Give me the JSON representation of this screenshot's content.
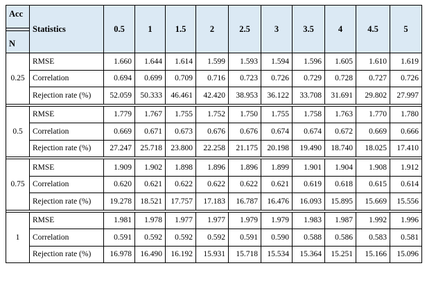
{
  "header": {
    "acc_label": "Acc",
    "n_label": "N",
    "statistics_label": "Statistics",
    "acc_values": [
      "0.5",
      "1",
      "1.5",
      "2",
      "2.5",
      "3",
      "3.5",
      "4",
      "4.5",
      "5"
    ]
  },
  "groups": [
    {
      "n": "0.25",
      "rows": [
        {
          "stat": "RMSE",
          "values": [
            "1.660",
            "1.644",
            "1.614",
            "1.599",
            "1.593",
            "1.594",
            "1.596",
            "1.605",
            "1.610",
            "1.619"
          ]
        },
        {
          "stat": "Correlation",
          "values": [
            "0.694",
            "0.699",
            "0.709",
            "0.716",
            "0.723",
            "0.726",
            "0.729",
            "0.728",
            "0.727",
            "0.726"
          ]
        },
        {
          "stat": "Rejection rate (%)",
          "values": [
            "52.059",
            "50.333",
            "46.461",
            "42.420",
            "38.953",
            "36.122",
            "33.708",
            "31.691",
            "29.802",
            "27.997"
          ]
        }
      ]
    },
    {
      "n": "0.5",
      "rows": [
        {
          "stat": "RMSE",
          "values": [
            "1.779",
            "1.767",
            "1.755",
            "1.752",
            "1.750",
            "1.755",
            "1.758",
            "1.763",
            "1.770",
            "1.780"
          ]
        },
        {
          "stat": "Correlation",
          "values": [
            "0.669",
            "0.671",
            "0.673",
            "0.676",
            "0.676",
            "0.674",
            "0.674",
            "0.672",
            "0.669",
            "0.666"
          ]
        },
        {
          "stat": "Rejection rate (%)",
          "values": [
            "27.247",
            "25.718",
            "23.800",
            "22.258",
            "21.175",
            "20.198",
            "19.490",
            "18.740",
            "18.025",
            "17.410"
          ]
        }
      ]
    },
    {
      "n": "0.75",
      "rows": [
        {
          "stat": "RMSE",
          "values": [
            "1.909",
            "1.902",
            "1.898",
            "1.896",
            "1.896",
            "1.899",
            "1.901",
            "1.904",
            "1.908",
            "1.912"
          ]
        },
        {
          "stat": "Correlation",
          "values": [
            "0.620",
            "0.621",
            "0.622",
            "0.622",
            "0.622",
            "0.621",
            "0.619",
            "0.618",
            "0.615",
            "0.614"
          ]
        },
        {
          "stat": "Rejection rate (%)",
          "values": [
            "19.278",
            "18.521",
            "17.757",
            "17.183",
            "16.787",
            "16.476",
            "16.093",
            "15.895",
            "15.669",
            "15.556"
          ]
        }
      ]
    },
    {
      "n": "1",
      "rows": [
        {
          "stat": "RMSE",
          "values": [
            "1.981",
            "1.978",
            "1.977",
            "1.977",
            "1.979",
            "1.979",
            "1.983",
            "1.987",
            "1.992",
            "1.996"
          ]
        },
        {
          "stat": "Correlation",
          "values": [
            "0.591",
            "0.592",
            "0.592",
            "0.592",
            "0.591",
            "0.590",
            "0.588",
            "0.586",
            "0.583",
            "0.581"
          ]
        },
        {
          "stat": "Rejection rate (%)",
          "values": [
            "16.978",
            "16.490",
            "16.192",
            "15.931",
            "15.718",
            "15.534",
            "15.364",
            "15.251",
            "15.166",
            "15.096"
          ]
        }
      ]
    }
  ],
  "colors": {
    "header_background": "#dbe9f4",
    "border": "#000000"
  }
}
